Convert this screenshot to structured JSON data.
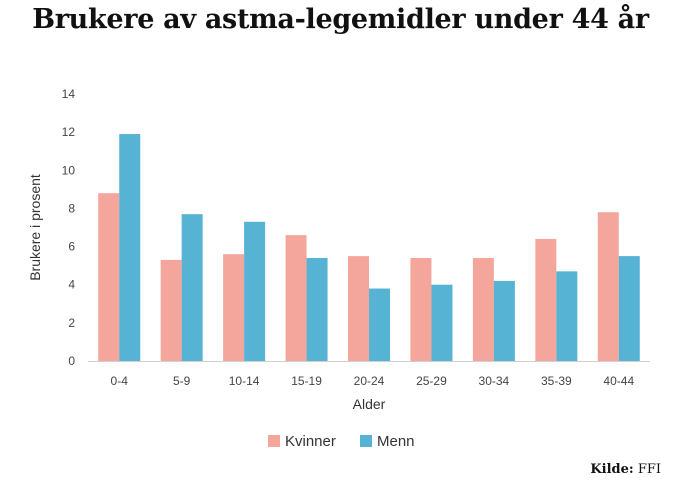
{
  "title": "Brukere av astma-legemidler under 44 år",
  "source": {
    "label": "Kilde:",
    "value": "FFI"
  },
  "chart_data": {
    "type": "bar",
    "title": "Brukere av astma-legemidler under 44 år",
    "xlabel": "Alder",
    "ylabel": "Brukere i prosent",
    "ylim": [
      0,
      14
    ],
    "yticks": [
      0,
      2,
      4,
      6,
      8,
      10,
      12,
      14
    ],
    "grid": false,
    "legend_position": "bottom",
    "categories": [
      "0-4",
      "5-9",
      "10-14",
      "15-19",
      "20-24",
      "25-29",
      "30-34",
      "35-39",
      "40-44"
    ],
    "series": [
      {
        "name": "Kvinner",
        "color": "#f4a69c",
        "values": [
          8.8,
          5.3,
          5.6,
          6.6,
          5.5,
          5.4,
          5.4,
          6.4,
          7.8
        ]
      },
      {
        "name": "Menn",
        "color": "#56b3d3",
        "values": [
          11.9,
          7.7,
          7.3,
          5.4,
          3.8,
          4.0,
          4.2,
          4.7,
          5.5
        ]
      }
    ]
  }
}
